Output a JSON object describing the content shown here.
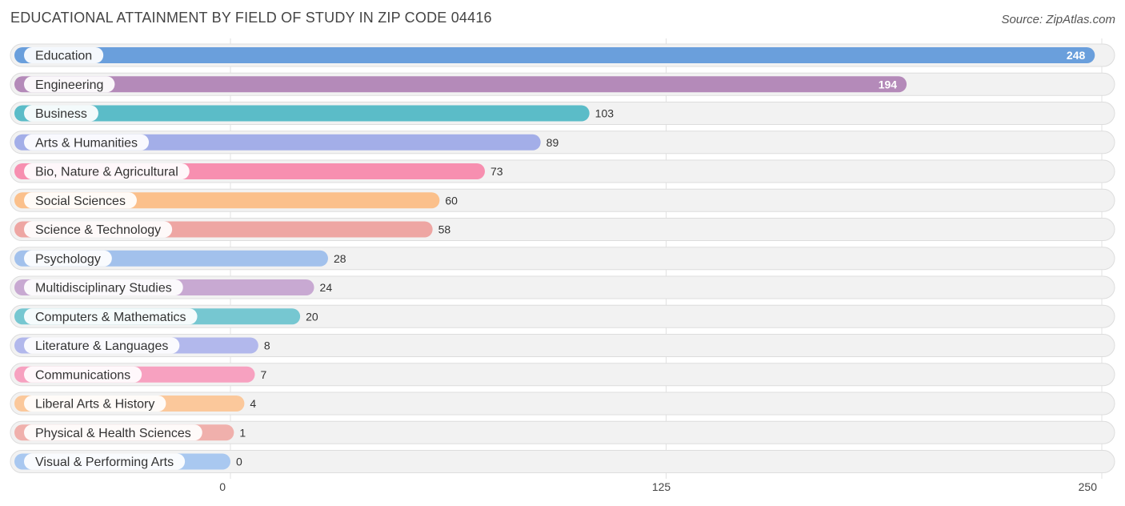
{
  "header": {
    "title": "EDUCATIONAL ATTAINMENT BY FIELD OF STUDY IN ZIP CODE 04416",
    "source": "Source: ZipAtlas.com"
  },
  "chart_data": {
    "type": "bar",
    "orientation": "horizontal",
    "title": "EDUCATIONAL ATTAINMENT BY FIELD OF STUDY IN ZIP CODE 04416",
    "xlabel": "",
    "ylabel": "",
    "xlim": [
      0,
      250
    ],
    "xticks": [
      0,
      125,
      250
    ],
    "grid": true,
    "categories": [
      "Education",
      "Engineering",
      "Business",
      "Arts & Humanities",
      "Bio, Nature & Agricultural",
      "Social Sciences",
      "Science & Technology",
      "Psychology",
      "Multidisciplinary Studies",
      "Computers & Mathematics",
      "Literature & Languages",
      "Communications",
      "Liberal Arts & History",
      "Physical & Health Sciences",
      "Visual & Performing Arts"
    ],
    "values": [
      248,
      194,
      103,
      89,
      73,
      60,
      58,
      28,
      24,
      20,
      8,
      7,
      4,
      1,
      0
    ],
    "colors": [
      "#6a9fdc",
      "#b48ab9",
      "#5bbcc8",
      "#a3aee8",
      "#f78fb0",
      "#fbc08b",
      "#eea6a3",
      "#a2c1ec",
      "#c8a9d2",
      "#76c7d1",
      "#b2b8ec",
      "#f7a1c0",
      "#fbc89b",
      "#f0b0ac",
      "#a9c8f0"
    ]
  }
}
